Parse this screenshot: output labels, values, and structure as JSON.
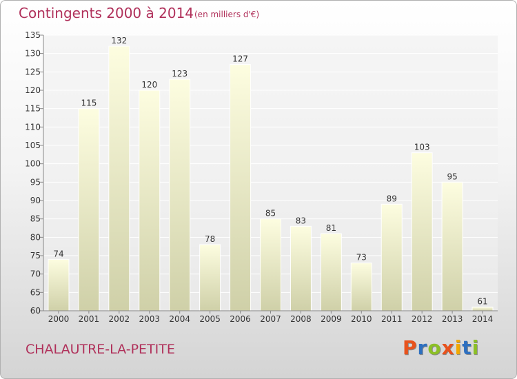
{
  "header": {
    "title": "Contingents 2000 à 2014",
    "subtitle": "(en milliers d'€)"
  },
  "footer": {
    "commune": "CHALAUTRE-LA-PETITE",
    "logo_text": "Proxiti",
    "logo_colors": [
      "#e8521c",
      "#2d6fc0",
      "#8cbf26",
      "#e8521c",
      "#f2a900",
      "#2d6fc0",
      "#8cbf26"
    ]
  },
  "colors": {
    "text_accent": "#b0305a",
    "bar_top": "#fdfde0",
    "bar_bottom": "#cfd0a8"
  },
  "chart_data": {
    "type": "bar",
    "title": "Contingents 2000 à 2014",
    "subtitle": "(en milliers d'€)",
    "xlabel": "",
    "ylabel": "",
    "categories": [
      "2000",
      "2001",
      "2002",
      "2003",
      "2004",
      "2005",
      "2006",
      "2007",
      "2008",
      "2009",
      "2010",
      "2011",
      "2012",
      "2013",
      "2014"
    ],
    "values": [
      74,
      115,
      132,
      120,
      123,
      78,
      127,
      85,
      83,
      81,
      73,
      89,
      103,
      95,
      61
    ],
    "ylim": [
      60,
      135
    ],
    "yticks": [
      60,
      65,
      70,
      75,
      80,
      85,
      90,
      95,
      100,
      105,
      110,
      115,
      120,
      125,
      130,
      135
    ],
    "grid": true,
    "legend": "none"
  }
}
